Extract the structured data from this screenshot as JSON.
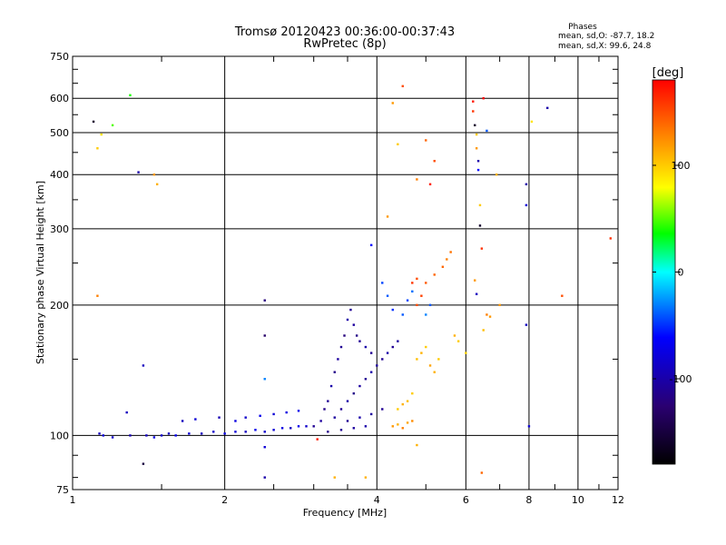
{
  "chart_data": {
    "type": "scatter",
    "title": "Tromsø 20120423 00:36:00-00:37:43",
    "subtitle": "RwPretec (8p)",
    "xlabel": "Frequency [MHz]",
    "ylabel": "Stationary phase Virtual Height [km]",
    "x_scale": "log",
    "y_scale": "log",
    "xlim": [
      1,
      12
    ],
    "ylim": [
      75,
      750
    ],
    "x_ticks": [
      1,
      2,
      4,
      6,
      8,
      10,
      12
    ],
    "y_ticks": [
      75,
      100,
      200,
      300,
      400,
      500,
      600,
      750
    ],
    "grid": true,
    "phase_info": {
      "heading": "Phases",
      "line_o": "mean, sd,O: -87.7, 18.2",
      "line_x": "mean, sd,X:  99.6, 24.8"
    },
    "colorbar": {
      "label": "[deg]",
      "range": [
        -180,
        180
      ],
      "ticks": [
        100,
        0,
        -100
      ],
      "stops": [
        "#000000",
        "#2a0070",
        "#0000ff",
        "#00ffff",
        "#00ff00",
        "#ffff00",
        "#ff8000",
        "#ff0000"
      ]
    },
    "series": [
      {
        "values": [
          {
            "x": 1.13,
            "y": 101,
            "phase": -90
          },
          {
            "x": 1.15,
            "y": 100,
            "phase": -80
          },
          {
            "x": 1.2,
            "y": 99,
            "phase": -85
          },
          {
            "x": 1.3,
            "y": 100,
            "phase": -95
          },
          {
            "x": 1.4,
            "y": 100,
            "phase": -90
          },
          {
            "x": 1.45,
            "y": 99,
            "phase": -75
          },
          {
            "x": 1.5,
            "y": 100,
            "phase": -85
          },
          {
            "x": 1.55,
            "y": 101,
            "phase": -90
          },
          {
            "x": 1.6,
            "y": 100,
            "phase": -70
          },
          {
            "x": 1.7,
            "y": 101,
            "phase": -80
          },
          {
            "x": 1.8,
            "y": 101,
            "phase": -90
          },
          {
            "x": 1.9,
            "y": 102,
            "phase": -85
          },
          {
            "x": 2.0,
            "y": 101,
            "phase": -75
          },
          {
            "x": 2.1,
            "y": 102,
            "phase": -80
          },
          {
            "x": 2.2,
            "y": 102,
            "phase": -90
          },
          {
            "x": 2.3,
            "y": 103,
            "phase": -70
          },
          {
            "x": 2.4,
            "y": 102,
            "phase": -85
          },
          {
            "x": 2.5,
            "y": 103,
            "phase": -80
          },
          {
            "x": 2.6,
            "y": 104,
            "phase": -75
          },
          {
            "x": 2.7,
            "y": 104,
            "phase": -90
          },
          {
            "x": 2.8,
            "y": 105,
            "phase": -70
          },
          {
            "x": 2.9,
            "y": 105,
            "phase": -85
          },
          {
            "x": 1.65,
            "y": 108,
            "phase": -90
          },
          {
            "x": 1.75,
            "y": 109,
            "phase": -80
          },
          {
            "x": 1.95,
            "y": 110,
            "phase": -95
          },
          {
            "x": 2.1,
            "y": 108,
            "phase": -75
          },
          {
            "x": 2.2,
            "y": 110,
            "phase": -85
          },
          {
            "x": 2.35,
            "y": 111,
            "phase": -70
          },
          {
            "x": 2.5,
            "y": 112,
            "phase": -80
          },
          {
            "x": 2.65,
            "y": 113,
            "phase": -75
          },
          {
            "x": 2.8,
            "y": 114,
            "phase": -70
          },
          {
            "x": 1.28,
            "y": 113,
            "phase": -90
          }
        ]
      },
      {
        "values": [
          {
            "x": 3.0,
            "y": 105,
            "phase": -110
          },
          {
            "x": 3.1,
            "y": 108,
            "phase": -105
          },
          {
            "x": 3.15,
            "y": 115,
            "phase": -115
          },
          {
            "x": 3.2,
            "y": 120,
            "phase": -110
          },
          {
            "x": 3.25,
            "y": 130,
            "phase": -100
          },
          {
            "x": 3.3,
            "y": 140,
            "phase": -115
          },
          {
            "x": 3.35,
            "y": 150,
            "phase": -105
          },
          {
            "x": 3.4,
            "y": 160,
            "phase": -110
          },
          {
            "x": 3.45,
            "y": 170,
            "phase": -120
          },
          {
            "x": 3.5,
            "y": 185,
            "phase": -100
          },
          {
            "x": 3.55,
            "y": 195,
            "phase": -110
          },
          {
            "x": 3.6,
            "y": 180,
            "phase": -105
          },
          {
            "x": 3.65,
            "y": 170,
            "phase": -115
          },
          {
            "x": 3.7,
            "y": 165,
            "phase": -110
          },
          {
            "x": 3.8,
            "y": 160,
            "phase": -100
          },
          {
            "x": 3.9,
            "y": 155,
            "phase": -110
          },
          {
            "x": 3.3,
            "y": 110,
            "phase": -105
          },
          {
            "x": 3.4,
            "y": 115,
            "phase": -110
          },
          {
            "x": 3.5,
            "y": 120,
            "phase": -100
          },
          {
            "x": 3.6,
            "y": 125,
            "phase": -115
          },
          {
            "x": 3.7,
            "y": 130,
            "phase": -105
          },
          {
            "x": 3.8,
            "y": 135,
            "phase": -110
          },
          {
            "x": 3.9,
            "y": 140,
            "phase": -100
          },
          {
            "x": 4.0,
            "y": 145,
            "phase": -105
          },
          {
            "x": 4.1,
            "y": 150,
            "phase": -110
          },
          {
            "x": 4.2,
            "y": 155,
            "phase": -100
          },
          {
            "x": 4.3,
            "y": 160,
            "phase": -110
          },
          {
            "x": 4.4,
            "y": 165,
            "phase": -105
          },
          {
            "x": 3.5,
            "y": 108,
            "phase": -110
          },
          {
            "x": 3.7,
            "y": 110,
            "phase": -100
          },
          {
            "x": 3.9,
            "y": 112,
            "phase": -105
          },
          {
            "x": 4.1,
            "y": 115,
            "phase": -110
          },
          {
            "x": 3.2,
            "y": 102,
            "phase": -115
          },
          {
            "x": 3.4,
            "y": 103,
            "phase": -110
          },
          {
            "x": 3.6,
            "y": 104,
            "phase": -105
          },
          {
            "x": 3.8,
            "y": 105,
            "phase": -100
          }
        ]
      },
      {
        "values": [
          {
            "x": 4.3,
            "y": 105,
            "phase": 120
          },
          {
            "x": 4.4,
            "y": 106,
            "phase": 110
          },
          {
            "x": 4.5,
            "y": 104,
            "phase": 130
          },
          {
            "x": 4.6,
            "y": 107,
            "phase": 115
          },
          {
            "x": 4.7,
            "y": 108,
            "phase": 125
          },
          {
            "x": 4.4,
            "y": 115,
            "phase": 100
          },
          {
            "x": 4.5,
            "y": 118,
            "phase": 110
          },
          {
            "x": 4.6,
            "y": 120,
            "phase": 105
          },
          {
            "x": 4.7,
            "y": 125,
            "phase": 100
          },
          {
            "x": 4.8,
            "y": 150,
            "phase": 105
          },
          {
            "x": 4.9,
            "y": 155,
            "phase": 110
          },
          {
            "x": 5.0,
            "y": 160,
            "phase": 100
          },
          {
            "x": 4.8,
            "y": 200,
            "phase": 150
          },
          {
            "x": 4.9,
            "y": 210,
            "phase": 155
          },
          {
            "x": 4.7,
            "y": 225,
            "phase": 160
          },
          {
            "x": 4.8,
            "y": 230,
            "phase": 150
          },
          {
            "x": 5.0,
            "y": 225,
            "phase": 145
          },
          {
            "x": 5.2,
            "y": 235,
            "phase": 140
          },
          {
            "x": 5.4,
            "y": 245,
            "phase": 140
          },
          {
            "x": 5.5,
            "y": 255,
            "phase": 130
          },
          {
            "x": 5.6,
            "y": 265,
            "phase": 135
          },
          {
            "x": 5.1,
            "y": 145,
            "phase": 115
          },
          {
            "x": 5.2,
            "y": 140,
            "phase": 110
          },
          {
            "x": 5.3,
            "y": 150,
            "phase": 100
          },
          {
            "x": 4.5,
            "y": 190,
            "phase": -40
          },
          {
            "x": 4.6,
            "y": 205,
            "phase": -45
          },
          {
            "x": 4.7,
            "y": 215,
            "phase": -35
          },
          {
            "x": 4.3,
            "y": 195,
            "phase": -50
          },
          {
            "x": 4.2,
            "y": 210,
            "phase": -40
          },
          {
            "x": 4.1,
            "y": 225,
            "phase": -45
          },
          {
            "x": 5.0,
            "y": 190,
            "phase": -30
          },
          {
            "x": 5.1,
            "y": 200,
            "phase": -40
          },
          {
            "x": 5.7,
            "y": 170,
            "phase": 110
          },
          {
            "x": 5.8,
            "y": 165,
            "phase": 100
          },
          {
            "x": 6.0,
            "y": 155,
            "phase": 95
          },
          {
            "x": 6.6,
            "y": 190,
            "phase": 130
          },
          {
            "x": 6.7,
            "y": 188,
            "phase": 120
          },
          {
            "x": 6.5,
            "y": 175,
            "phase": 105
          }
        ]
      },
      {
        "values": [
          {
            "x": 1.1,
            "y": 530,
            "phase": -160
          },
          {
            "x": 1.12,
            "y": 460,
            "phase": 100
          },
          {
            "x": 1.14,
            "y": 495,
            "phase": 90
          },
          {
            "x": 1.2,
            "y": 520,
            "phase": 50
          },
          {
            "x": 1.12,
            "y": 210,
            "phase": 130
          },
          {
            "x": 1.3,
            "y": 610,
            "phase": 40
          },
          {
            "x": 1.35,
            "y": 405,
            "phase": -100
          },
          {
            "x": 1.45,
            "y": 400,
            "phase": 120
          },
          {
            "x": 1.47,
            "y": 380,
            "phase": 110
          },
          {
            "x": 1.38,
            "y": 145,
            "phase": -90
          },
          {
            "x": 1.38,
            "y": 86,
            "phase": -150
          },
          {
            "x": 2.4,
            "y": 205,
            "phase": -120
          },
          {
            "x": 2.4,
            "y": 170,
            "phase": -130
          },
          {
            "x": 2.4,
            "y": 135,
            "phase": -30
          },
          {
            "x": 2.4,
            "y": 94,
            "phase": -80
          },
          {
            "x": 2.4,
            "y": 80,
            "phase": -100
          },
          {
            "x": 3.05,
            "y": 98,
            "phase": 170
          },
          {
            "x": 3.3,
            "y": 80,
            "phase": 110
          },
          {
            "x": 3.8,
            "y": 80,
            "phase": 110
          },
          {
            "x": 3.9,
            "y": 275,
            "phase": -60
          },
          {
            "x": 4.2,
            "y": 320,
            "phase": 120
          },
          {
            "x": 4.3,
            "y": 585,
            "phase": 120
          },
          {
            "x": 4.4,
            "y": 470,
            "phase": 100
          },
          {
            "x": 4.5,
            "y": 640,
            "phase": 150
          },
          {
            "x": 4.8,
            "y": 390,
            "phase": 130
          },
          {
            "x": 5.0,
            "y": 480,
            "phase": 140
          },
          {
            "x": 5.1,
            "y": 380,
            "phase": 170
          },
          {
            "x": 5.2,
            "y": 430,
            "phase": 150
          },
          {
            "x": 4.8,
            "y": 95,
            "phase": 110
          },
          {
            "x": 6.2,
            "y": 590,
            "phase": 170
          },
          {
            "x": 6.2,
            "y": 560,
            "phase": 160
          },
          {
            "x": 6.25,
            "y": 520,
            "phase": -160
          },
          {
            "x": 6.3,
            "y": 495,
            "phase": 100
          },
          {
            "x": 6.3,
            "y": 460,
            "phase": 120
          },
          {
            "x": 6.35,
            "y": 430,
            "phase": -100
          },
          {
            "x": 6.35,
            "y": 410,
            "phase": -60
          },
          {
            "x": 6.4,
            "y": 340,
            "phase": 100
          },
          {
            "x": 6.4,
            "y": 305,
            "phase": -160
          },
          {
            "x": 6.45,
            "y": 270,
            "phase": 160
          },
          {
            "x": 6.5,
            "y": 600,
            "phase": 180
          },
          {
            "x": 6.6,
            "y": 505,
            "phase": -40
          },
          {
            "x": 6.25,
            "y": 228,
            "phase": 120
          },
          {
            "x": 6.3,
            "y": 212,
            "phase": -90
          },
          {
            "x": 6.45,
            "y": 82,
            "phase": 140
          },
          {
            "x": 6.9,
            "y": 400,
            "phase": 110
          },
          {
            "x": 7.0,
            "y": 200,
            "phase": 120
          },
          {
            "x": 7.9,
            "y": 380,
            "phase": -100
          },
          {
            "x": 7.9,
            "y": 340,
            "phase": -80
          },
          {
            "x": 7.9,
            "y": 180,
            "phase": -90
          },
          {
            "x": 8.0,
            "y": 105,
            "phase": -80
          },
          {
            "x": 8.1,
            "y": 530,
            "phase": 90
          },
          {
            "x": 8.7,
            "y": 570,
            "phase": -100
          },
          {
            "x": 9.3,
            "y": 210,
            "phase": 150
          },
          {
            "x": 11.6,
            "y": 285,
            "phase": 160
          }
        ]
      }
    ]
  }
}
